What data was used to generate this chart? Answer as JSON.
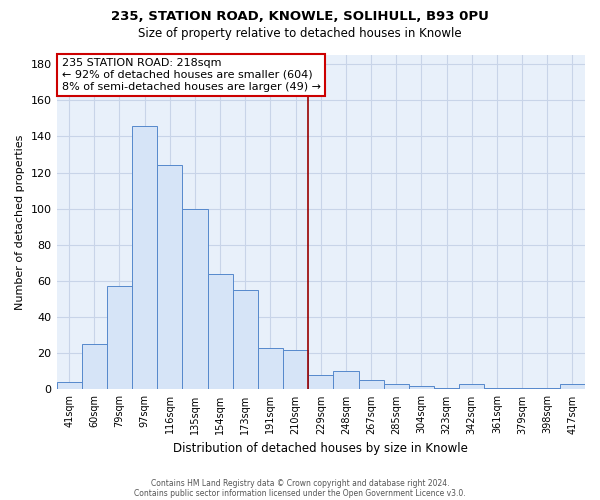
{
  "title": "235, STATION ROAD, KNOWLE, SOLIHULL, B93 0PU",
  "subtitle": "Size of property relative to detached houses in Knowle",
  "xlabel": "Distribution of detached houses by size in Knowle",
  "ylabel": "Number of detached properties",
  "bar_labels": [
    "41sqm",
    "60sqm",
    "79sqm",
    "97sqm",
    "116sqm",
    "135sqm",
    "154sqm",
    "173sqm",
    "191sqm",
    "210sqm",
    "229sqm",
    "248sqm",
    "267sqm",
    "285sqm",
    "304sqm",
    "323sqm",
    "342sqm",
    "361sqm",
    "379sqm",
    "398sqm",
    "417sqm"
  ],
  "bar_values": [
    4,
    25,
    57,
    146,
    124,
    100,
    64,
    55,
    23,
    22,
    8,
    10,
    5,
    3,
    2,
    1,
    3,
    1,
    1,
    1,
    3
  ],
  "bar_color": "#d6e4f7",
  "bar_edge_color": "#5588cc",
  "property_line_x": 9.5,
  "property_line_color": "#990000",
  "annotation_line1": "235 STATION ROAD: 218sqm",
  "annotation_line2": "← 92% of detached houses are smaller (604)",
  "annotation_line3": "8% of semi-detached houses are larger (49) →",
  "annotation_box_color": "#ffffff",
  "annotation_box_edge_color": "#cc0000",
  "ylim": [
    0,
    185
  ],
  "yticks": [
    0,
    20,
    40,
    60,
    80,
    100,
    120,
    140,
    160,
    180
  ],
  "footnote1": "Contains HM Land Registry data © Crown copyright and database right 2024.",
  "footnote2": "Contains public sector information licensed under the Open Government Licence v3.0.",
  "background_color": "#ffffff",
  "plot_bg_color": "#e8f0fa",
  "grid_color": "#c8d4e8"
}
